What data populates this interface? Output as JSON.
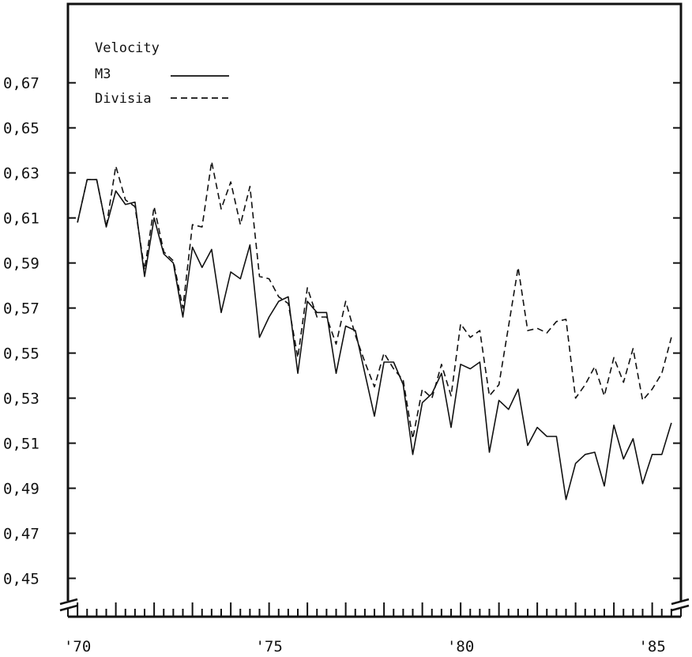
{
  "chart_data": {
    "type": "line",
    "legend": {
      "title": "Velocity",
      "placement": "top-left"
    },
    "y_tick_labels": [
      "0,45",
      "0,47",
      "0,49",
      "0,51",
      "0,53",
      "0,55",
      "0,57",
      "0,59",
      "0,61",
      "0,63",
      "0,65",
      "0,67"
    ],
    "y_ticks": [
      0.45,
      0.47,
      0.49,
      0.51,
      0.53,
      0.55,
      0.57,
      0.59,
      0.61,
      0.63,
      0.65,
      0.67
    ],
    "x_tick_labels": [
      "'70",
      "'75",
      "'80",
      "'85"
    ],
    "x_ticks": [
      1970,
      1975,
      1980,
      1985
    ],
    "xlim": [
      1969.75,
      1985.75
    ],
    "ylim": [
      0.44,
      0.705
    ],
    "grid": false,
    "series": [
      {
        "name": "M3",
        "style": "solid",
        "x": [
          1970.0,
          1970.25,
          1970.5,
          1970.75,
          1971.0,
          1971.25,
          1971.5,
          1971.75,
          1972.0,
          1972.25,
          1972.5,
          1972.75,
          1973.0,
          1973.25,
          1973.5,
          1973.75,
          1974.0,
          1974.25,
          1974.5,
          1974.75,
          1975.0,
          1975.25,
          1975.5,
          1975.75,
          1976.0,
          1976.25,
          1976.5,
          1976.75,
          1977.0,
          1977.25,
          1977.5,
          1977.75,
          1978.0,
          1978.25,
          1978.5,
          1978.75,
          1979.0,
          1979.25,
          1979.5,
          1979.75,
          1980.0,
          1980.25,
          1980.5,
          1980.75,
          1981.0,
          1981.25,
          1981.5,
          1981.75,
          1982.0,
          1982.25,
          1982.5,
          1982.75,
          1983.0,
          1983.25,
          1983.5,
          1983.75,
          1984.0,
          1984.25,
          1984.5,
          1984.75,
          1985.0,
          1985.25,
          1985.5
        ],
        "values": [
          0.608,
          0.627,
          0.627,
          0.606,
          0.622,
          0.616,
          0.617,
          0.584,
          0.61,
          0.594,
          0.59,
          0.566,
          0.597,
          0.588,
          0.596,
          0.568,
          0.586,
          0.583,
          0.598,
          0.557,
          0.566,
          0.573,
          0.575,
          0.541,
          0.573,
          0.568,
          0.568,
          0.541,
          0.562,
          0.56,
          0.541,
          0.522,
          0.546,
          0.546,
          0.536,
          0.505,
          0.528,
          0.532,
          0.541,
          0.517,
          0.545,
          0.543,
          0.546,
          0.506,
          0.529,
          0.525,
          0.534,
          0.509,
          0.517,
          0.513,
          0.513,
          0.485,
          0.501,
          0.505,
          0.506,
          0.491,
          0.518,
          0.503,
          0.512,
          0.492,
          0.505,
          0.505,
          0.519
        ]
      },
      {
        "name": "Divisia",
        "style": "dashed",
        "x": [
          1970.0,
          1970.25,
          1970.5,
          1970.75,
          1971.0,
          1971.25,
          1971.5,
          1971.75,
          1972.0,
          1972.25,
          1972.5,
          1972.75,
          1973.0,
          1973.25,
          1973.5,
          1973.75,
          1974.0,
          1974.25,
          1974.5,
          1974.75,
          1975.0,
          1975.25,
          1975.5,
          1975.75,
          1976.0,
          1976.25,
          1976.5,
          1976.75,
          1977.0,
          1977.25,
          1977.5,
          1977.75,
          1978.0,
          1978.25,
          1978.5,
          1978.75,
          1979.0,
          1979.25,
          1979.5,
          1979.75,
          1980.0,
          1980.25,
          1980.5,
          1980.75,
          1981.0,
          1981.25,
          1981.5,
          1981.75,
          1982.0,
          1982.25,
          1982.5,
          1982.75,
          1983.0,
          1983.25,
          1983.5,
          1983.75,
          1984.0,
          1984.25,
          1984.5,
          1984.75,
          1985.0,
          1985.25,
          1985.5
        ],
        "values": [
          0.608,
          0.627,
          0.627,
          0.606,
          0.633,
          0.618,
          0.615,
          0.587,
          0.615,
          0.595,
          0.591,
          0.57,
          0.607,
          0.606,
          0.635,
          0.614,
          0.626,
          0.607,
          0.624,
          0.584,
          0.583,
          0.575,
          0.572,
          0.548,
          0.579,
          0.566,
          0.566,
          0.554,
          0.573,
          0.558,
          0.546,
          0.535,
          0.55,
          0.543,
          0.538,
          0.512,
          0.534,
          0.53,
          0.545,
          0.531,
          0.563,
          0.557,
          0.56,
          0.531,
          0.536,
          0.562,
          0.588,
          0.56,
          0.561,
          0.559,
          0.564,
          0.565,
          0.53,
          0.536,
          0.544,
          0.531,
          0.548,
          0.537,
          0.552,
          0.529,
          0.534,
          0.541,
          0.557
        ]
      }
    ]
  }
}
